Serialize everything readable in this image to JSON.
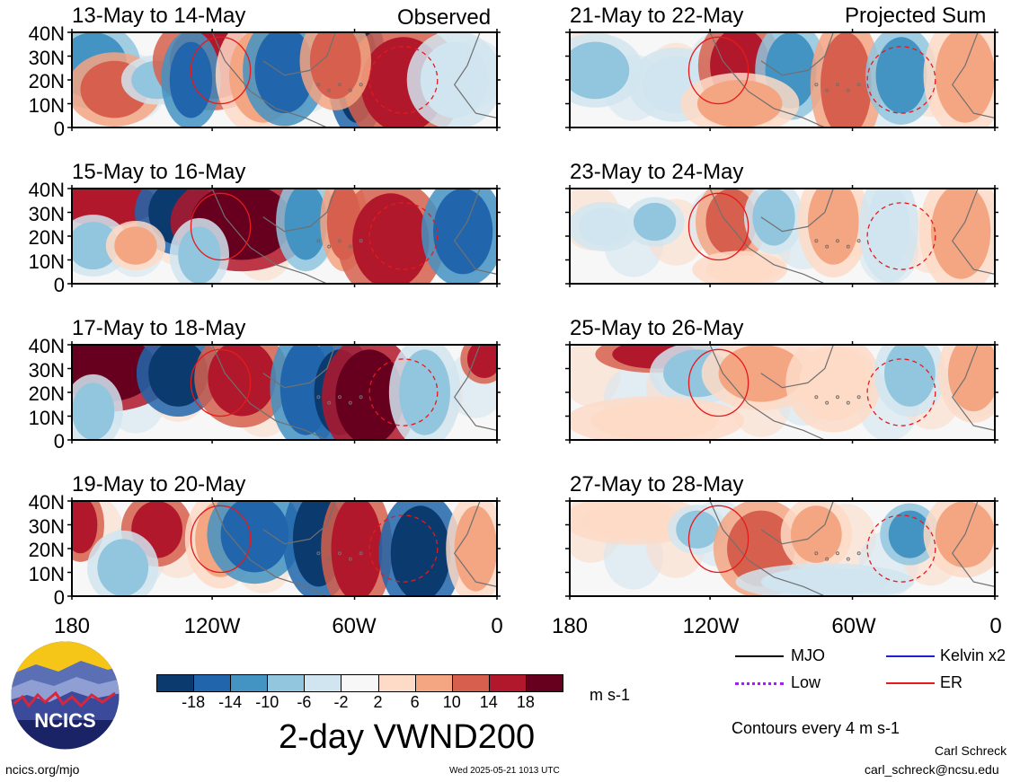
{
  "headings": {
    "left": "Observed",
    "right": "Projected Sum"
  },
  "panels": {
    "observed": [
      "13-May to 14-May",
      "15-May to 16-May",
      "17-May to 18-May",
      "19-May to 20-May"
    ],
    "projected": [
      "21-May to 22-May",
      "23-May to 24-May",
      "25-May to 26-May",
      "27-May to 28-May"
    ]
  },
  "axes": {
    "y_ticks": [
      "40N",
      "30N",
      "20N",
      "10N",
      "0"
    ],
    "x_ticks": [
      "180",
      "120W",
      "60W",
      "0"
    ]
  },
  "colorbar": {
    "labels": [
      "-18",
      "-14",
      "-10",
      "-6",
      "-2",
      "2",
      "6",
      "10",
      "14",
      "18"
    ],
    "units": "m s-1",
    "colors": [
      "#0b3a6e",
      "#2166ac",
      "#4393c3",
      "#92c5de",
      "#d1e5f0",
      "#f7f7f7",
      "#fddbc7",
      "#f4a582",
      "#d6604d",
      "#b2182b",
      "#67001f"
    ]
  },
  "legend": {
    "items": [
      {
        "label": "MJO",
        "color": "#000000"
      },
      {
        "label": "Kelvin x2",
        "color": "#1f1fd6"
      },
      {
        "label": "Low",
        "color": "#a020f0"
      },
      {
        "label": "ER",
        "color": "#e41a1c"
      }
    ],
    "contour_note": "Contours every 4 m s-1"
  },
  "title": "2-day VWND200",
  "logo": {
    "text": "NCICS"
  },
  "footer": {
    "site": "ncics.org/mjo",
    "timestamp": "Wed 2025-05-21 1013 UTC",
    "author": "Carl Schreck",
    "email": "carl_schreck@ncsu.edu"
  }
}
